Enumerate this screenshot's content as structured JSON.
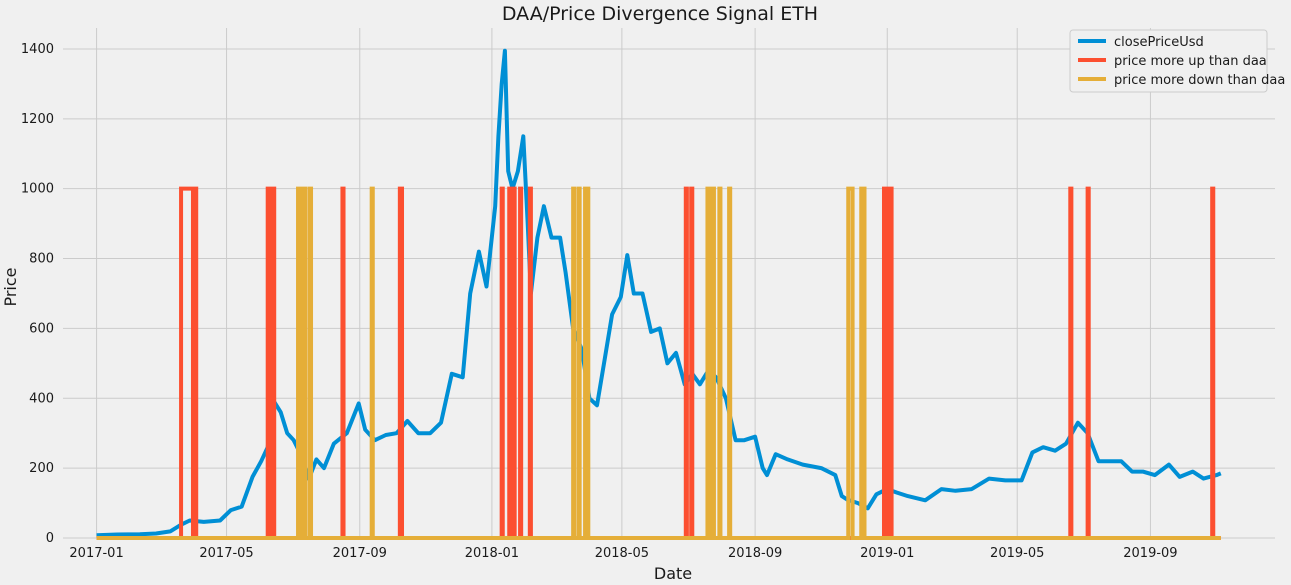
{
  "chart_data": {
    "type": "line",
    "title": "DAA/Price Divergence Signal ETH",
    "xlabel": "Date",
    "ylabel": "Price",
    "x_range": [
      "2017-01-01",
      "2019-11-01"
    ],
    "ylim": [
      0,
      1460
    ],
    "x_ticks": [
      "2017-01",
      "2017-05",
      "2017-09",
      "2018-01",
      "2018-05",
      "2018-09",
      "2019-01",
      "2019-05",
      "2019-09"
    ],
    "y_ticks": [
      0,
      200,
      400,
      600,
      800,
      1000,
      1200,
      1400
    ],
    "grid": true,
    "legend_position": "top-right",
    "series": [
      {
        "name": "closePriceUsd",
        "color": "#008fd5",
        "points": [
          [
            "2017-01-01",
            8
          ],
          [
            "2017-01-20",
            10
          ],
          [
            "2017-02-10",
            11
          ],
          [
            "2017-02-25",
            13
          ],
          [
            "2017-03-10",
            19
          ],
          [
            "2017-03-20",
            38
          ],
          [
            "2017-03-28",
            50
          ],
          [
            "2017-04-10",
            46
          ],
          [
            "2017-04-25",
            50
          ],
          [
            "2017-05-05",
            80
          ],
          [
            "2017-05-15",
            90
          ],
          [
            "2017-05-25",
            175
          ],
          [
            "2017-06-02",
            220
          ],
          [
            "2017-06-08",
            260
          ],
          [
            "2017-06-13",
            395
          ],
          [
            "2017-06-20",
            360
          ],
          [
            "2017-06-26",
            300
          ],
          [
            "2017-07-02",
            280
          ],
          [
            "2017-07-10",
            230
          ],
          [
            "2017-07-16",
            170
          ],
          [
            "2017-07-23",
            225
          ],
          [
            "2017-07-30",
            200
          ],
          [
            "2017-08-08",
            270
          ],
          [
            "2017-08-20",
            300
          ],
          [
            "2017-08-31",
            385
          ],
          [
            "2017-09-06",
            310
          ],
          [
            "2017-09-15",
            280
          ],
          [
            "2017-09-25",
            295
          ],
          [
            "2017-10-05",
            300
          ],
          [
            "2017-10-15",
            335
          ],
          [
            "2017-10-25",
            300
          ],
          [
            "2017-11-05",
            300
          ],
          [
            "2017-11-15",
            330
          ],
          [
            "2017-11-25",
            470
          ],
          [
            "2017-12-05",
            460
          ],
          [
            "2017-12-12",
            700
          ],
          [
            "2017-12-20",
            820
          ],
          [
            "2017-12-27",
            720
          ],
          [
            "2018-01-04",
            950
          ],
          [
            "2018-01-07",
            1150
          ],
          [
            "2018-01-10",
            1300
          ],
          [
            "2018-01-13",
            1395
          ],
          [
            "2018-01-16",
            1050
          ],
          [
            "2018-01-20",
            1000
          ],
          [
            "2018-01-25",
            1050
          ],
          [
            "2018-01-30",
            1150
          ],
          [
            "2018-02-03",
            900
          ],
          [
            "2018-02-06",
            700
          ],
          [
            "2018-02-12",
            860
          ],
          [
            "2018-02-18",
            950
          ],
          [
            "2018-02-25",
            860
          ],
          [
            "2018-03-05",
            860
          ],
          [
            "2018-03-10",
            760
          ],
          [
            "2018-03-17",
            600
          ],
          [
            "2018-03-25",
            540
          ],
          [
            "2018-04-01",
            400
          ],
          [
            "2018-04-08",
            380
          ],
          [
            "2018-04-15",
            510
          ],
          [
            "2018-04-22",
            640
          ],
          [
            "2018-04-30",
            690
          ],
          [
            "2018-05-06",
            810
          ],
          [
            "2018-05-12",
            700
          ],
          [
            "2018-05-20",
            700
          ],
          [
            "2018-05-28",
            590
          ],
          [
            "2018-06-05",
            600
          ],
          [
            "2018-06-12",
            500
          ],
          [
            "2018-06-20",
            530
          ],
          [
            "2018-06-28",
            440
          ],
          [
            "2018-07-05",
            470
          ],
          [
            "2018-07-12",
            440
          ],
          [
            "2018-07-20",
            480
          ],
          [
            "2018-07-27",
            460
          ],
          [
            "2018-08-05",
            400
          ],
          [
            "2018-08-14",
            280
          ],
          [
            "2018-08-22",
            280
          ],
          [
            "2018-09-01",
            290
          ],
          [
            "2018-09-08",
            200
          ],
          [
            "2018-09-12",
            180
          ],
          [
            "2018-09-20",
            240
          ],
          [
            "2018-10-01",
            225
          ],
          [
            "2018-10-15",
            210
          ],
          [
            "2018-11-01",
            200
          ],
          [
            "2018-11-14",
            180
          ],
          [
            "2018-11-20",
            120
          ],
          [
            "2018-11-25",
            110
          ],
          [
            "2018-12-05",
            100
          ],
          [
            "2018-12-14",
            85
          ],
          [
            "2018-12-22",
            125
          ],
          [
            "2019-01-01",
            140
          ],
          [
            "2019-01-10",
            130
          ],
          [
            "2019-01-20",
            120
          ],
          [
            "2019-02-05",
            108
          ],
          [
            "2019-02-20",
            140
          ],
          [
            "2019-03-05",
            135
          ],
          [
            "2019-03-20",
            140
          ],
          [
            "2019-04-05",
            170
          ],
          [
            "2019-04-20",
            165
          ],
          [
            "2019-05-05",
            165
          ],
          [
            "2019-05-15",
            245
          ],
          [
            "2019-05-25",
            260
          ],
          [
            "2019-06-05",
            250
          ],
          [
            "2019-06-15",
            270
          ],
          [
            "2019-06-26",
            330
          ],
          [
            "2019-07-05",
            300
          ],
          [
            "2019-07-15",
            220
          ],
          [
            "2019-07-25",
            220
          ],
          [
            "2019-08-05",
            220
          ],
          [
            "2019-08-15",
            190
          ],
          [
            "2019-08-25",
            190
          ],
          [
            "2019-09-05",
            180
          ],
          [
            "2019-09-18",
            210
          ],
          [
            "2019-09-28",
            175
          ],
          [
            "2019-10-10",
            190
          ],
          [
            "2019-10-20",
            170
          ],
          [
            "2019-11-01",
            180
          ],
          [
            "2019-11-05",
            185
          ]
        ]
      },
      {
        "name": "price more up than daa",
        "color": "#fc4f30",
        "baseline_range": [
          "2017-01-01",
          "2019-11-05"
        ],
        "baseline_value": 0,
        "spikes": [
          [
            "2017-03-20",
            "2017-03-31",
            1000
          ],
          [
            "2017-04-01",
            "2017-04-03",
            1000
          ],
          [
            "2017-06-08",
            "2017-06-09",
            1000
          ],
          [
            "2017-06-11",
            "2017-06-14",
            1000
          ],
          [
            "2017-08-16",
            "2017-08-17",
            1000
          ],
          [
            "2017-10-08",
            "2017-10-10",
            1000
          ],
          [
            "2018-01-10",
            "2018-01-11",
            1000
          ],
          [
            "2018-01-17",
            "2018-01-18",
            1000
          ],
          [
            "2018-01-21",
            "2018-01-22",
            1000
          ],
          [
            "2018-01-27",
            "2018-01-28",
            1000
          ],
          [
            "2018-02-05",
            "2018-02-06",
            1000
          ],
          [
            "2018-06-29",
            "2018-06-30",
            1000
          ],
          [
            "2018-07-04",
            "2018-07-05",
            1000
          ],
          [
            "2018-12-29",
            "2018-12-30",
            1000
          ],
          [
            "2019-01-01",
            "2019-01-02",
            1000
          ],
          [
            "2019-01-03",
            "2019-01-05",
            1000
          ],
          [
            "2019-06-19",
            "2019-06-20",
            1000
          ],
          [
            "2019-07-05",
            "2019-07-06",
            1000
          ],
          [
            "2019-10-28",
            "2019-10-29",
            1000
          ]
        ]
      },
      {
        "name": "price more down than daa",
        "color": "#e5ae38",
        "baseline_range": [
          "2017-01-01",
          "2019-11-05"
        ],
        "baseline_value": 0,
        "spikes": [
          [
            "2017-07-06",
            "2017-07-07",
            1000
          ],
          [
            "2017-07-09",
            "2017-07-10",
            1000
          ],
          [
            "2017-07-12",
            "2017-07-13",
            1000
          ],
          [
            "2017-07-17",
            "2017-07-18",
            1000
          ],
          [
            "2017-09-12",
            "2017-09-13",
            1000
          ],
          [
            "2018-03-17",
            "2018-03-18",
            1000
          ],
          [
            "2018-03-22",
            "2018-03-23",
            1000
          ],
          [
            "2018-03-28",
            "2018-03-29",
            1000
          ],
          [
            "2018-03-30",
            "2018-03-31",
            1000
          ],
          [
            "2018-07-19",
            "2018-07-20",
            1000
          ],
          [
            "2018-07-22",
            "2018-07-23",
            1000
          ],
          [
            "2018-07-24",
            "2018-07-25",
            1000
          ],
          [
            "2018-07-30",
            "2018-07-31",
            1000
          ],
          [
            "2018-08-08",
            "2018-08-09",
            1000
          ],
          [
            "2018-11-26",
            "2018-11-30",
            1000
          ],
          [
            "2018-12-08",
            "2018-12-09",
            1000
          ],
          [
            "2018-12-10",
            "2018-12-11",
            1000
          ]
        ]
      }
    ]
  }
}
